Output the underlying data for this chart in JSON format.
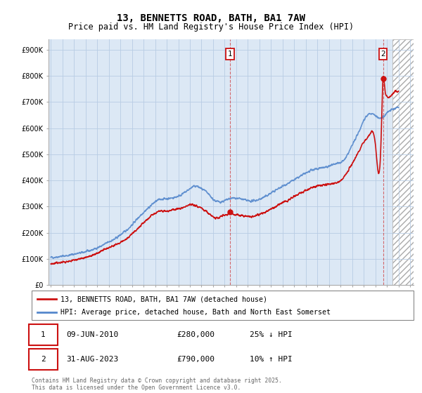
{
  "title": "13, BENNETTS ROAD, BATH, BA1 7AW",
  "subtitle": "Price paid vs. HM Land Registry's House Price Index (HPI)",
  "title_fontsize": 10,
  "subtitle_fontsize": 8.5,
  "hpi_color": "#5588cc",
  "price_color": "#cc1111",
  "bg_color": "#dce8f5",
  "grid_color": "#b8cce4",
  "legend_label_red": "13, BENNETTS ROAD, BATH, BA1 7AW (detached house)",
  "legend_label_blue": "HPI: Average price, detached house, Bath and North East Somerset",
  "annotation1_date": "09-JUN-2010",
  "annotation1_price": "£280,000",
  "annotation1_hpi": "25% ↓ HPI",
  "annotation2_date": "31-AUG-2023",
  "annotation2_price": "£790,000",
  "annotation2_hpi": "10% ↑ HPI",
  "footnote": "Contains HM Land Registry data © Crown copyright and database right 2025.\nThis data is licensed under the Open Government Licence v3.0.",
  "ylim": [
    0,
    940000
  ],
  "yticks": [
    0,
    100000,
    200000,
    300000,
    400000,
    500000,
    600000,
    700000,
    800000,
    900000
  ],
  "ytick_labels": [
    "£0",
    "£100K",
    "£200K",
    "£300K",
    "£400K",
    "£500K",
    "£600K",
    "£700K",
    "£800K",
    "£900K"
  ],
  "sale1_x": 2010.44,
  "sale1_y": 280000,
  "sale2_x": 2023.66,
  "sale2_y": 790000,
  "hatch_start": 2024.5,
  "xlim_start": 1994.8,
  "xlim_end": 2026.3
}
